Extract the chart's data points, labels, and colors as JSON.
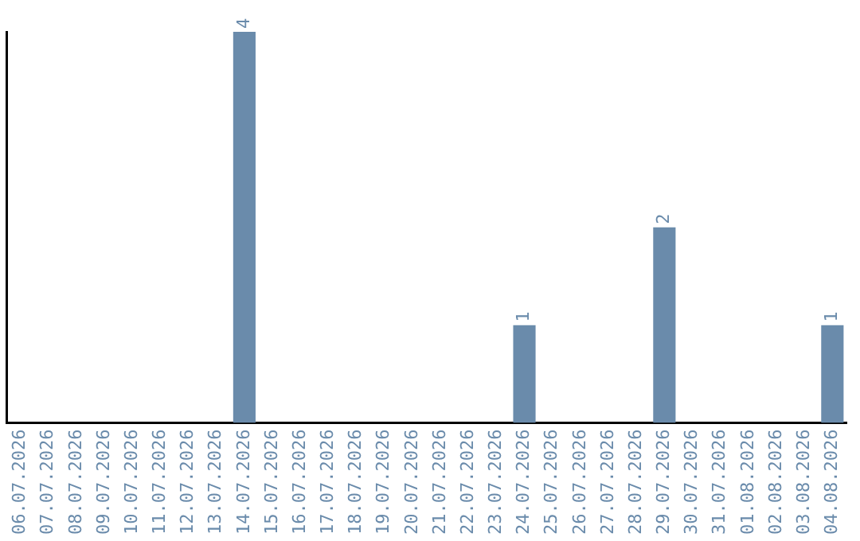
{
  "chart_data": {
    "type": "bar",
    "categories": [
      "06.07.2026",
      "07.07.2026",
      "08.07.2026",
      "09.07.2026",
      "10.07.2026",
      "11.07.2026",
      "12.07.2026",
      "13.07.2026",
      "14.07.2026",
      "15.07.2026",
      "16.07.2026",
      "17.07.2026",
      "18.07.2026",
      "19.07.2026",
      "20.07.2026",
      "21.07.2026",
      "22.07.2026",
      "23.07.2026",
      "24.07.2026",
      "25.07.2026",
      "26.07.2026",
      "27.07.2026",
      "28.07.2026",
      "29.07.2026",
      "30.07.2026",
      "31.07.2026",
      "01.08.2026",
      "02.08.2026",
      "03.08.2026",
      "04.08.2026"
    ],
    "values": [
      0,
      0,
      0,
      0,
      0,
      0,
      0,
      0,
      4,
      0,
      0,
      0,
      0,
      0,
      0,
      0,
      0,
      0,
      1,
      0,
      0,
      0,
      0,
      2,
      0,
      0,
      0,
      0,
      0,
      1
    ],
    "value_labels": [
      null,
      null,
      null,
      null,
      null,
      null,
      null,
      null,
      "4",
      null,
      null,
      null,
      null,
      null,
      null,
      null,
      null,
      null,
      "1",
      null,
      null,
      null,
      null,
      "2",
      null,
      null,
      null,
      null,
      null,
      "1"
    ],
    "color": "#6a8bab",
    "grid": false,
    "legend": false,
    "tick_labels": "x"
  }
}
